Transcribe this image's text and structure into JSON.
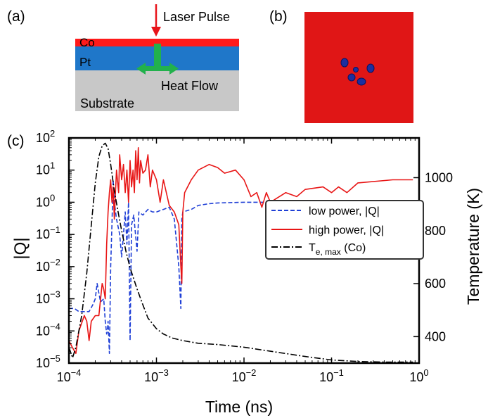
{
  "panels": {
    "a": {
      "label": "(a)",
      "layers": {
        "co": "Co",
        "pt": "Pt",
        "substrate": "Substrate"
      },
      "laser_label": "Laser Pulse",
      "heat_label": "Heat Flow",
      "colors": {
        "co": "#ff1a1a",
        "pt": "#1f77c9",
        "substrate": "#c8c8c8",
        "arrow": "#22b14c",
        "laser": "#e8141a"
      }
    },
    "b": {
      "label": "(b)",
      "colors": {
        "background": "#e01616",
        "skyrmion": "#1c2fa0"
      }
    },
    "c": {
      "label": "(c)"
    }
  },
  "chart_data": {
    "type": "line",
    "xlabel": "Time (ns)",
    "ylabel": "|Q|",
    "y2label": "Temperature (K)",
    "xscale": "log",
    "yscale": "log",
    "xlim": [
      0.0001,
      1
    ],
    "ylim": [
      1e-05,
      100
    ],
    "y2lim": [
      300,
      1150
    ],
    "xticks": [
      {
        "value": 0.0001,
        "base": "10",
        "exp": "−4"
      },
      {
        "value": 0.001,
        "base": "10",
        "exp": "−3"
      },
      {
        "value": 0.01,
        "base": "10",
        "exp": "−2"
      },
      {
        "value": 0.1,
        "base": "10",
        "exp": "−1"
      },
      {
        "value": 1,
        "base": "10",
        "exp": "0"
      }
    ],
    "yticks": [
      {
        "value": 1e-05,
        "base": "10",
        "exp": "−5"
      },
      {
        "value": 0.0001,
        "base": "10",
        "exp": "−4"
      },
      {
        "value": 0.001,
        "base": "10",
        "exp": "−3"
      },
      {
        "value": 0.01,
        "base": "10",
        "exp": "−2"
      },
      {
        "value": 0.1,
        "base": "10",
        "exp": "−1"
      },
      {
        "value": 1,
        "base": "10",
        "exp": "0"
      },
      {
        "value": 10,
        "base": "10",
        "exp": "1"
      },
      {
        "value": 100,
        "base": "10",
        "exp": "2"
      }
    ],
    "y2ticks": [
      400,
      600,
      800,
      1000
    ],
    "legend": {
      "placement": "center-right",
      "entries": [
        {
          "series": 0,
          "text": "low power, |Q|"
        },
        {
          "series": 1,
          "text": "high power, |Q|"
        },
        {
          "series": 2,
          "text": "T",
          "sub": "e, max",
          "suffix": " (Co)"
        }
      ]
    },
    "series": [
      {
        "name": "low power, |Q|",
        "axis": "left",
        "color": "#1f3fd6",
        "dash": "6,3",
        "points": [
          [
            0.0001,
            0.0005
          ],
          [
            0.000115,
            0.0005
          ],
          [
            0.00013,
            0.0004
          ],
          [
            0.00015,
            0.0004
          ],
          [
            0.00017,
            0.0004
          ],
          [
            0.00019,
            0.0007
          ],
          [
            0.0002,
            0.001
          ],
          [
            0.00021,
            0.003
          ],
          [
            0.00022,
            0.0015
          ],
          [
            0.00023,
            0.0008
          ],
          [
            0.00025,
            0.001
          ],
          [
            0.00026,
            0.0002
          ],
          [
            0.00027,
            8e-05
          ],
          [
            0.000275,
            0.0001
          ],
          [
            0.00028,
            0.0002
          ],
          [
            0.00029,
            2e-05
          ],
          [
            0.0003,
            0.01
          ],
          [
            0.00031,
            0.2
          ],
          [
            0.00032,
            5
          ],
          [
            0.00033,
            1
          ],
          [
            0.00035,
            0.3
          ],
          [
            0.00038,
            0.1
          ],
          [
            0.0004,
            0.02
          ],
          [
            0.00042,
            0.1
          ],
          [
            0.00044,
            0.5
          ],
          [
            0.00046,
            0.05
          ],
          [
            0.00048,
            1
          ],
          [
            0.0005,
            5e-05
          ],
          [
            0.00052,
            0.2
          ],
          [
            0.00055,
            0.4
          ],
          [
            0.0006,
            0.03
          ],
          [
            0.00063,
            0.5
          ],
          [
            0.0007,
            0.4
          ],
          [
            0.0008,
            0.6
          ],
          [
            0.0009,
            0.5
          ],
          [
            0.001,
            0.5
          ],
          [
            0.0012,
            0.6
          ],
          [
            0.0014,
            0.7
          ],
          [
            0.0016,
            0.3
          ],
          [
            0.0018,
            0.01
          ],
          [
            0.0019,
            0.0005
          ],
          [
            0.00195,
            0.3
          ],
          [
            0.002,
            0.5
          ],
          [
            0.0025,
            0.6
          ],
          [
            0.003,
            0.8
          ],
          [
            0.004,
            0.9
          ],
          [
            0.005,
            0.95
          ],
          [
            0.01,
            1
          ],
          [
            0.05,
            1
          ],
          [
            0.1,
            1
          ],
          [
            0.5,
            0.9
          ],
          [
            0.85,
            0.9
          ]
        ]
      },
      {
        "name": "high power, |Q|",
        "axis": "left",
        "color": "#e81515",
        "dash": "",
        "points": [
          [
            0.0001,
            5e-05
          ],
          [
            0.00011,
            3e-05
          ],
          [
            0.00012,
            2e-05
          ],
          [
            0.00013,
            0.0001
          ],
          [
            0.00015,
            0.0003
          ],
          [
            0.00016,
            0.0002
          ],
          [
            0.00017,
            5e-05
          ],
          [
            0.00018,
            0.0002
          ],
          [
            0.0002,
            0.0003
          ],
          [
            0.00022,
            0.0003
          ],
          [
            0.00024,
            0.003
          ],
          [
            0.00025,
            0.002
          ],
          [
            0.00026,
            0.001
          ],
          [
            0.00027,
            0.05
          ],
          [
            0.00028,
            0.5
          ],
          [
            0.00029,
            2
          ],
          [
            0.0003,
            5
          ],
          [
            0.00031,
            1
          ],
          [
            0.00032,
            3
          ],
          [
            0.00033,
            0.3
          ],
          [
            0.00034,
            2
          ],
          [
            0.00035,
            10
          ],
          [
            0.00037,
            2
          ],
          [
            0.00038,
            30
          ],
          [
            0.0004,
            5
          ],
          [
            0.00042,
            15
          ],
          [
            0.00044,
            2
          ],
          [
            0.00046,
            10
          ],
          [
            0.00048,
            1
          ],
          [
            0.0005,
            20
          ],
          [
            0.00052,
            3
          ],
          [
            0.00054,
            10
          ],
          [
            0.00056,
            2
          ],
          [
            0.00058,
            40
          ],
          [
            0.0006,
            5
          ],
          [
            0.00062,
            50
          ],
          [
            0.00064,
            4
          ],
          [
            0.00066,
            20
          ],
          [
            0.0007,
            8
          ],
          [
            0.00075,
            10
          ],
          [
            0.0008,
            30
          ],
          [
            0.00085,
            3
          ],
          [
            0.0009,
            10
          ],
          [
            0.001,
            5
          ],
          [
            0.0011,
            1
          ],
          [
            0.0012,
            5
          ],
          [
            0.0014,
            0.8
          ],
          [
            0.0016,
            0.5
          ],
          [
            0.0018,
            0.2
          ],
          [
            0.0019,
            0.01
          ],
          [
            0.00195,
            0.003
          ],
          [
            0.002,
            0.5
          ],
          [
            0.0021,
            2
          ],
          [
            0.0025,
            5
          ],
          [
            0.003,
            10
          ],
          [
            0.004,
            15
          ],
          [
            0.005,
            12
          ],
          [
            0.006,
            8
          ],
          [
            0.008,
            10
          ],
          [
            0.01,
            5
          ],
          [
            0.012,
            1.5
          ],
          [
            0.014,
            2
          ],
          [
            0.016,
            0.7
          ],
          [
            0.018,
            2
          ],
          [
            0.02,
            1
          ],
          [
            0.03,
            2
          ],
          [
            0.04,
            1.5
          ],
          [
            0.05,
            2.5
          ],
          [
            0.08,
            3
          ],
          [
            0.1,
            2
          ],
          [
            0.12,
            3
          ],
          [
            0.15,
            2
          ],
          [
            0.2,
            4
          ],
          [
            0.5,
            5
          ],
          [
            0.85,
            5
          ]
        ]
      },
      {
        "name": "T e, max (Co)",
        "axis": "right",
        "color": "#000000",
        "dash": "9,3,2,3",
        "points": [
          [
            0.0001,
            360
          ],
          [
            0.00011,
            320
          ],
          [
            0.00012,
            360
          ],
          [
            0.00014,
            480
          ],
          [
            0.00016,
            640
          ],
          [
            0.00018,
            820
          ],
          [
            0.0002,
            980
          ],
          [
            0.00022,
            1080
          ],
          [
            0.00024,
            1120
          ],
          [
            0.00026,
            1130
          ],
          [
            0.00028,
            1110
          ],
          [
            0.0003,
            1050
          ],
          [
            0.00033,
            950
          ],
          [
            0.00036,
            880
          ],
          [
            0.0004,
            800
          ],
          [
            0.00045,
            720
          ],
          [
            0.0005,
            660
          ],
          [
            0.0006,
            580
          ],
          [
            0.0007,
            520
          ],
          [
            0.0008,
            470
          ],
          [
            0.001,
            430
          ],
          [
            0.0012,
            410
          ],
          [
            0.0015,
            395
          ],
          [
            0.002,
            385
          ],
          [
            0.003,
            375
          ],
          [
            0.005,
            370
          ],
          [
            0.01,
            360
          ],
          [
            0.02,
            345
          ],
          [
            0.05,
            325
          ],
          [
            0.1,
            312
          ],
          [
            0.2,
            306
          ],
          [
            0.4,
            304
          ],
          [
            0.85,
            304
          ]
        ]
      }
    ]
  }
}
